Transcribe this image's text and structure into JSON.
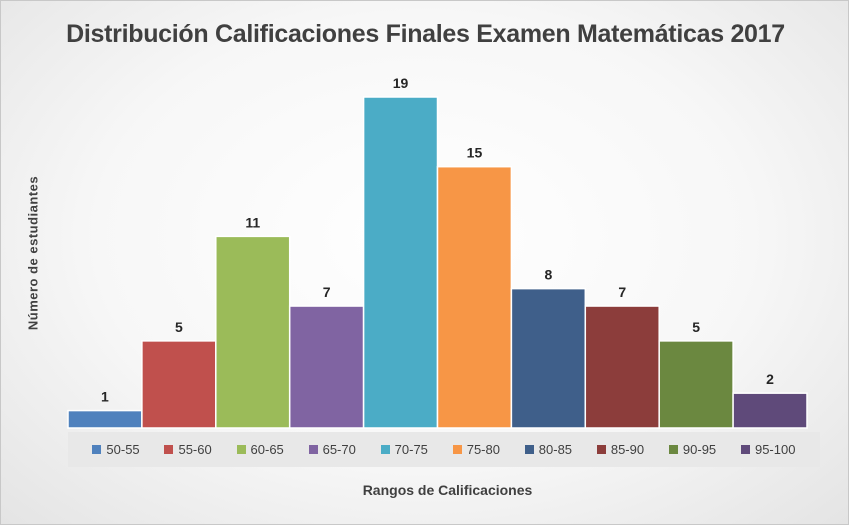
{
  "chart_data": {
    "type": "bar",
    "title": "Distribución Calificaciones Finales Examen Matemáticas 2017",
    "xlabel": "Rangos de Calificaciones",
    "ylabel": "Número de estudiantes",
    "categories": [
      "50-55",
      "55-60",
      "60-65",
      "65-70",
      "70-75",
      "75-80",
      "80-85",
      "85-90",
      "90-95",
      "95-100"
    ],
    "values": [
      1,
      5,
      11,
      7,
      19,
      15,
      8,
      7,
      5,
      2
    ],
    "colors": [
      "#4f81bd",
      "#c0504d",
      "#9bbb59",
      "#8064a2",
      "#4bacc6",
      "#f79646",
      "#3f5f8a",
      "#8c3d3b",
      "#6b8840",
      "#5f4a7a"
    ],
    "ylim": [
      0,
      19
    ],
    "grid": false,
    "legend": "bottom",
    "data_labels": true
  }
}
